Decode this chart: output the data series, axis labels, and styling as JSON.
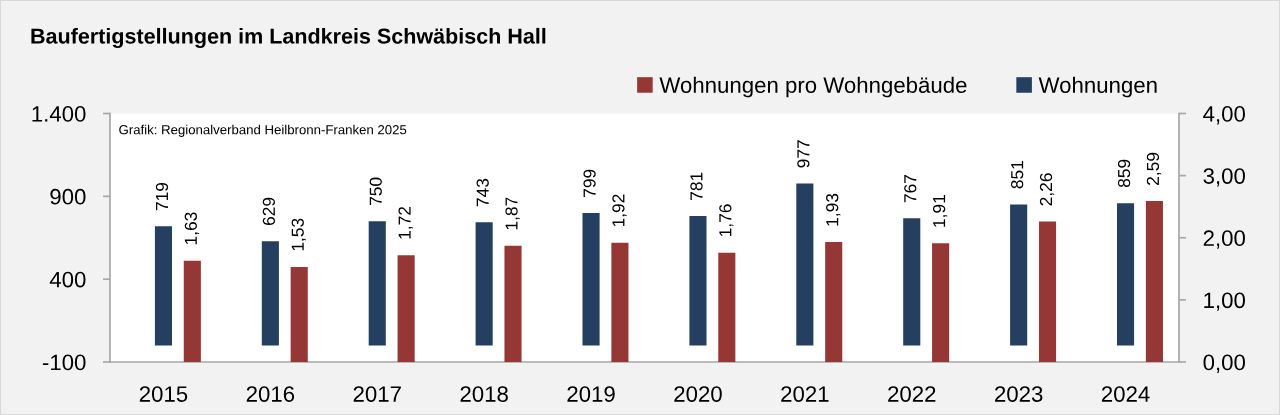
{
  "chart_data": {
    "type": "bar",
    "title": "Baufertigstellungen im Landkreis Schwäbisch Hall",
    "categories": [
      "2015",
      "2016",
      "2017",
      "2018",
      "2019",
      "2020",
      "2021",
      "2022",
      "2023",
      "2024"
    ],
    "series": [
      {
        "name": "Wohnungen",
        "color": "#243f60",
        "values": [
          719,
          629,
          750,
          743,
          799,
          781,
          977,
          767,
          851,
          859
        ],
        "value_labels": [
          "719",
          "629",
          "750",
          "743",
          "799",
          "781",
          "977",
          "767",
          "851",
          "859"
        ]
      },
      {
        "name": "Wohnungen pro Wohngebäude",
        "color": "#953735",
        "axis": "y2",
        "values": [
          1.63,
          1.53,
          1.72,
          1.87,
          1.92,
          1.76,
          1.93,
          1.91,
          2.26,
          2.59
        ],
        "value_labels": [
          "1,63",
          "1,53",
          "1,72",
          "1,87",
          "1,92",
          "1,76",
          "1,93",
          "1,91",
          "2,26",
          "2,59"
        ]
      }
    ],
    "ylim": [
      -100,
      1400
    ],
    "yticks": [
      -100,
      400,
      900,
      {
        "value": 1400,
        "label": "1.400"
      }
    ],
    "y2lim": [
      0,
      4
    ],
    "y2ticks": [
      {
        "value": 0,
        "label": "0,00"
      },
      {
        "value": 1,
        "label": "1,00"
      },
      {
        "value": 2,
        "label": "2,00"
      },
      {
        "value": 3,
        "label": "3,00"
      },
      {
        "value": 4,
        "label": "4,00"
      }
    ],
    "legend": "top right",
    "annotations": [
      "Grafik: Regionalverband Heilbronn-Franken 2025"
    ]
  }
}
